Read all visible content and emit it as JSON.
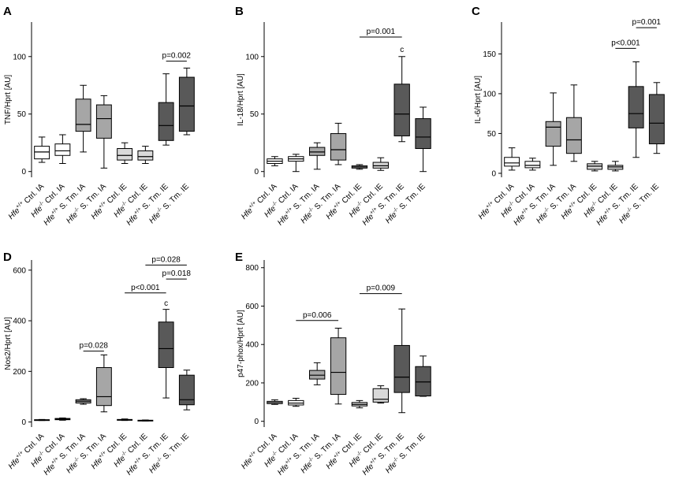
{
  "colors": {
    "white": "#ffffff",
    "light_gray": "#d9d9d9",
    "mid_gray": "#a6a6a6",
    "dark_gray": "#595959",
    "stroke": "#000000"
  },
  "categories": [
    "Hfe+/+ Ctrl. IA",
    "Hfe-/- Ctrl. IA",
    "Hfe+/+ S. Tm. IA",
    "Hfe-/- S. Tm. IA",
    "Hfe+/+ Ctrl. IE",
    "Hfe-/- Ctrl. IE",
    "Hfe+/+ S. Tm. IE",
    "Hfe-/- S. Tm. IE"
  ],
  "chart_data": [
    {
      "type": "box",
      "panel": "A",
      "ylabel": "TNF/Hprt [AU]",
      "ylim": [
        -5,
        130
      ],
      "yticks": [
        0,
        50,
        100
      ],
      "boxes": [
        {
          "min": 8,
          "q1": 11,
          "median": 17,
          "q3": 22,
          "max": 30,
          "fill": "white"
        },
        {
          "min": 7,
          "q1": 14,
          "median": 18,
          "q3": 24,
          "max": 32,
          "fill": "white"
        },
        {
          "min": 17,
          "q1": 35,
          "median": 41,
          "q3": 63,
          "max": 75,
          "fill": "mid_gray"
        },
        {
          "min": 3,
          "q1": 29,
          "median": 46,
          "q3": 58,
          "max": 66,
          "fill": "mid_gray"
        },
        {
          "min": 7,
          "q1": 10,
          "median": 14,
          "q3": 20,
          "max": 25,
          "fill": "light_gray"
        },
        {
          "min": 7,
          "q1": 10,
          "median": 13,
          "q3": 18,
          "max": 22,
          "fill": "light_gray"
        },
        {
          "min": 23,
          "q1": 27,
          "median": 40,
          "q3": 60,
          "max": 85,
          "fill": "dark_gray"
        },
        {
          "min": 32,
          "q1": 35,
          "median": 57,
          "q3": 82,
          "max": 90,
          "fill": "dark_gray"
        }
      ],
      "annotations": [
        {
          "label": "p=0.002",
          "from": 6,
          "to": 7,
          "y": 96
        }
      ],
      "letters": []
    },
    {
      "type": "box",
      "panel": "B",
      "ylabel": "IL-18/Hprt [AU]",
      "ylim": [
        -5,
        130
      ],
      "yticks": [
        0,
        50,
        100
      ],
      "boxes": [
        {
          "min": 5,
          "q1": 7,
          "median": 9,
          "q3": 11,
          "max": 13,
          "fill": "white"
        },
        {
          "min": 0,
          "q1": 9,
          "median": 11,
          "q3": 13,
          "max": 15,
          "fill": "white"
        },
        {
          "min": 2,
          "q1": 14,
          "median": 17,
          "q3": 21,
          "max": 25,
          "fill": "mid_gray"
        },
        {
          "min": 6,
          "q1": 10,
          "median": 19,
          "q3": 33,
          "max": 42,
          "fill": "mid_gray"
        },
        {
          "min": 2,
          "q1": 3,
          "median": 4,
          "q3": 5,
          "max": 6,
          "fill": "light_gray"
        },
        {
          "min": 1,
          "q1": 3,
          "median": 5,
          "q3": 8,
          "max": 12,
          "fill": "light_gray"
        },
        {
          "min": 26,
          "q1": 31,
          "median": 50,
          "q3": 76,
          "max": 100,
          "fill": "dark_gray"
        },
        {
          "min": 0,
          "q1": 20,
          "median": 30,
          "q3": 46,
          "max": 56,
          "fill": "dark_gray"
        }
      ],
      "annotations": [
        {
          "label": "p=0.001",
          "from": 4,
          "to": 6,
          "y": 117
        }
      ],
      "letters": [
        {
          "label": "c",
          "box": 6,
          "y": 104
        }
      ]
    },
    {
      "type": "box",
      "panel": "C",
      "ylabel": "IL-6/Hprt [AU]",
      "ylim": [
        -5,
        190
      ],
      "yticks": [
        0,
        50,
        100,
        150
      ],
      "boxes": [
        {
          "min": 4,
          "q1": 9,
          "median": 13,
          "q3": 20,
          "max": 32,
          "fill": "white"
        },
        {
          "min": 4,
          "q1": 7,
          "median": 10,
          "q3": 15,
          "max": 19,
          "fill": "white"
        },
        {
          "min": 10,
          "q1": 34,
          "median": 58,
          "q3": 65,
          "max": 101,
          "fill": "mid_gray"
        },
        {
          "min": 15,
          "q1": 25,
          "median": 42,
          "q3": 70,
          "max": 111,
          "fill": "mid_gray"
        },
        {
          "min": 3,
          "q1": 5,
          "median": 9,
          "q3": 12,
          "max": 15,
          "fill": "light_gray"
        },
        {
          "min": 3,
          "q1": 5,
          "median": 8,
          "q3": 10,
          "max": 15,
          "fill": "light_gray"
        },
        {
          "min": 20,
          "q1": 57,
          "median": 75,
          "q3": 109,
          "max": 140,
          "fill": "dark_gray"
        },
        {
          "min": 25,
          "q1": 37,
          "median": 63,
          "q3": 99,
          "max": 114,
          "fill": "dark_gray"
        }
      ],
      "annotations": [
        {
          "label": "p<0.001",
          "from": 5,
          "to": 6,
          "y": 157
        },
        {
          "label": "p=0.001",
          "from": 6,
          "to": 7,
          "y": 183
        }
      ],
      "letters": []
    },
    {
      "type": "box",
      "panel": "D",
      "ylabel": "Nos2/Hprt [AU]",
      "ylim": [
        -20,
        640
      ],
      "yticks": [
        0,
        200,
        400,
        600
      ],
      "boxes": [
        {
          "min": 6,
          "q1": 7,
          "median": 8,
          "q3": 9,
          "max": 10,
          "fill": "white"
        },
        {
          "min": 7,
          "q1": 9,
          "median": 11,
          "q3": 14,
          "max": 16,
          "fill": "white"
        },
        {
          "min": 70,
          "q1": 75,
          "median": 82,
          "q3": 88,
          "max": 92,
          "fill": "mid_gray"
        },
        {
          "min": 40,
          "q1": 65,
          "median": 100,
          "q3": 215,
          "max": 265,
          "fill": "mid_gray"
        },
        {
          "min": 6,
          "q1": 7,
          "median": 8,
          "q3": 10,
          "max": 12,
          "fill": "light_gray"
        },
        {
          "min": 4,
          "q1": 5,
          "median": 6,
          "q3": 7,
          "max": 8,
          "fill": "light_gray"
        },
        {
          "min": 95,
          "q1": 215,
          "median": 290,
          "q3": 395,
          "max": 445,
          "fill": "dark_gray"
        },
        {
          "min": 48,
          "q1": 68,
          "median": 88,
          "q3": 185,
          "max": 205,
          "fill": "dark_gray"
        }
      ],
      "annotations": [
        {
          "label": "p=0.028",
          "from": 2,
          "to": 3,
          "y": 280
        },
        {
          "label": "p<0.001",
          "from": 4,
          "to": 6,
          "y": 510
        },
        {
          "label": "p=0.018",
          "from": 6,
          "to": 7,
          "y": 565
        },
        {
          "label": "p=0.028",
          "from": 5,
          "to": 7,
          "y": 620
        }
      ],
      "letters": [
        {
          "label": "c",
          "box": 6,
          "y": 460
        }
      ]
    },
    {
      "type": "box",
      "panel": "E",
      "ylabel": "p47-phox/Hprt [AU]",
      "ylim": [
        -30,
        840
      ],
      "yticks": [
        0,
        200,
        400,
        600,
        800
      ],
      "boxes": [
        {
          "min": 88,
          "q1": 92,
          "median": 98,
          "q3": 104,
          "max": 112,
          "fill": "white"
        },
        {
          "min": 78,
          "q1": 85,
          "median": 95,
          "q3": 108,
          "max": 120,
          "fill": "white"
        },
        {
          "min": 190,
          "q1": 220,
          "median": 240,
          "q3": 265,
          "max": 305,
          "fill": "mid_gray"
        },
        {
          "min": 90,
          "q1": 140,
          "median": 255,
          "q3": 435,
          "max": 485,
          "fill": "mid_gray"
        },
        {
          "min": 70,
          "q1": 80,
          "median": 88,
          "q3": 98,
          "max": 108,
          "fill": "light_gray"
        },
        {
          "min": 95,
          "q1": 100,
          "median": 115,
          "q3": 170,
          "max": 185,
          "fill": "light_gray"
        },
        {
          "min": 45,
          "q1": 150,
          "median": 230,
          "q3": 395,
          "max": 585,
          "fill": "dark_gray"
        },
        {
          "min": 130,
          "q1": 132,
          "median": 205,
          "q3": 285,
          "max": 340,
          "fill": "dark_gray"
        }
      ],
      "annotations": [
        {
          "label": "p=0.006",
          "from": 1,
          "to": 3,
          "y": 525
        },
        {
          "label": "p=0.009",
          "from": 4,
          "to": 6,
          "y": 665
        }
      ],
      "letters": []
    }
  ]
}
